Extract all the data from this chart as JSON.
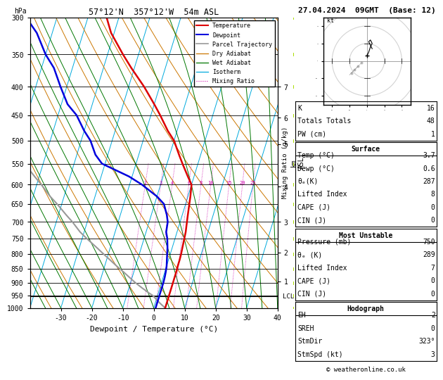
{
  "title_left": "57°12'N  357°12'W  54m ASL",
  "title_right": "27.04.2024  09GMT  (Base: 12)",
  "xlabel": "Dewpoint / Temperature (°C)",
  "pressure_levels": [
    300,
    350,
    400,
    450,
    500,
    550,
    600,
    650,
    700,
    750,
    800,
    850,
    900,
    950,
    1000
  ],
  "temp_ticks": [
    -30,
    -20,
    -10,
    0,
    10,
    20,
    30,
    40
  ],
  "pres_min": 300,
  "pres_max": 1000,
  "T_min": -40,
  "T_max": 40,
  "km_ticks": [
    1,
    2,
    3,
    4,
    5,
    6,
    7
  ],
  "km_pressures": [
    895,
    795,
    700,
    605,
    507,
    455,
    400
  ],
  "lcl_pressure": 953,
  "mixing_ratio_vals": [
    2,
    3,
    4,
    6,
    8,
    10,
    15,
    20,
    25
  ],
  "temp_profile_p": [
    300,
    320,
    350,
    370,
    400,
    430,
    450,
    480,
    500,
    530,
    550,
    580,
    600,
    630,
    650,
    680,
    700,
    730,
    750,
    780,
    800,
    820,
    840,
    860,
    880,
    900,
    920,
    940,
    960,
    980,
    1000
  ],
  "temp_profile_T": [
    -44,
    -41,
    -35,
    -31,
    -25,
    -20,
    -17,
    -13,
    -10,
    -7,
    -5,
    -2,
    0,
    0.8,
    1.2,
    1.8,
    2.2,
    2.8,
    3.0,
    3.3,
    3.5,
    3.6,
    3.6,
    3.7,
    3.7,
    3.7,
    3.7,
    3.7,
    3.7,
    3.7,
    3.7
  ],
  "dewp_profile_p": [
    300,
    320,
    350,
    370,
    400,
    430,
    450,
    480,
    500,
    530,
    550,
    580,
    600,
    630,
    650,
    680,
    700,
    730,
    750,
    780,
    800,
    820,
    840,
    860,
    880,
    900,
    920,
    940,
    960,
    980,
    1000
  ],
  "dewp_profile_T": [
    -70,
    -65,
    -60,
    -56,
    -52,
    -48,
    -44,
    -40,
    -37,
    -34,
    -31,
    -21,
    -16,
    -10,
    -7,
    -5,
    -4,
    -3.5,
    -2.5,
    -1.5,
    -1.0,
    -0.5,
    0.0,
    0.3,
    0.5,
    0.6,
    0.6,
    0.6,
    0.6,
    0.6,
    0.6
  ],
  "parcel_p": [
    1000,
    980,
    960,
    950,
    940,
    920,
    900,
    880,
    860,
    840,
    820,
    800,
    780,
    750,
    730,
    700,
    680,
    650,
    630,
    600,
    580,
    550,
    530,
    500,
    480,
    450,
    400,
    350,
    300
  ],
  "parcel_T": [
    3.7,
    1.5,
    -0.5,
    -1.5,
    -3.0,
    -5.8,
    -8.5,
    -11.0,
    -13.5,
    -16.2,
    -18.8,
    -21.5,
    -24.2,
    -28.5,
    -31.3,
    -34.8,
    -37.5,
    -41.5,
    -44.5,
    -48.5,
    -51.5,
    -56.0,
    -59.5,
    -64.5,
    -68.5,
    -74.5,
    -87.0,
    -100.0,
    -113.0
  ],
  "temp_color": "#dd0000",
  "dewp_color": "#0000dd",
  "parcel_color": "#999999",
  "dry_adiabat_color": "#cc7700",
  "wet_adiabat_color": "#007700",
  "isotherm_color": "#00aadd",
  "mixing_ratio_color": "#cc00aa",
  "info_K": 16,
  "info_TT": 48,
  "info_PW": 1,
  "surf_temp": 3.7,
  "surf_dewp": 0.6,
  "surf_thetae": 287,
  "surf_li": 8,
  "surf_cape": 0,
  "surf_cin": 0,
  "mu_pressure": 750,
  "mu_thetae": 289,
  "mu_li": 7,
  "mu_cape": 0,
  "mu_cin": 0,
  "hodo_EH": 2,
  "hodo_SREH": 0,
  "hodo_StmDir": 323,
  "hodo_StmSpd": 3,
  "wind_profile_p": [
    300,
    350,
    400,
    450,
    500,
    550,
    600,
    650,
    700,
    750,
    800,
    850,
    900,
    950,
    1000
  ],
  "wind_u": [
    3,
    4,
    5,
    5,
    4,
    4,
    3,
    4,
    4,
    3,
    3,
    4,
    4,
    3,
    3
  ],
  "wind_v": [
    5,
    8,
    10,
    12,
    10,
    8,
    7,
    6,
    5,
    3,
    2,
    1,
    0,
    -1,
    -2
  ]
}
